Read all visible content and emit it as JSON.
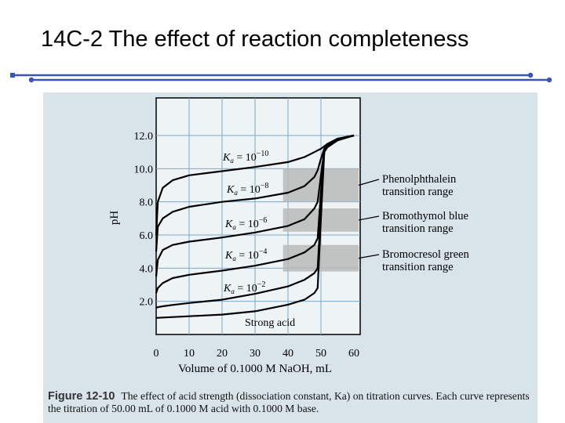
{
  "slide": {
    "title": "14C-2 The effect of reaction completeness"
  },
  "colors": {
    "rule": "#3b54b8",
    "panel": "#d9e3ea",
    "plot_bg": "#eef3f6",
    "shade": "#b8b8b8",
    "curve": "#000000"
  },
  "chart_data": {
    "type": "line",
    "xlabel": "Volume of 0.1000 M NaOH, mL",
    "ylabel": "pH",
    "xlim": [
      0,
      60
    ],
    "ylim": [
      0,
      13
    ],
    "grid": true,
    "x_ticks": [
      "0",
      "10",
      "20",
      "30",
      "40",
      "50",
      "60"
    ],
    "y_ticks": [
      "2.0",
      "4.0",
      "6.0",
      "8.0",
      "10.0",
      "12.0"
    ],
    "series": [
      {
        "name": "Ka = 10^-10",
        "x": [
          0,
          0.5,
          2,
          5,
          10,
          20,
          30,
          40,
          45,
          48,
          49,
          50,
          51,
          52,
          55,
          60
        ],
        "y": [
          6.0,
          8.0,
          8.85,
          9.3,
          9.6,
          9.85,
          10.1,
          10.4,
          10.7,
          11.0,
          11.1,
          11.2,
          11.35,
          11.5,
          11.8,
          12.0
        ]
      },
      {
        "name": "Ka = 10^-8",
        "x": [
          0,
          0.5,
          2,
          5,
          10,
          20,
          30,
          40,
          45,
          48,
          49,
          50,
          51,
          52,
          55,
          60
        ],
        "y": [
          5.0,
          6.5,
          7.0,
          7.4,
          7.7,
          8.0,
          8.2,
          8.55,
          8.95,
          9.5,
          9.9,
          10.6,
          11.2,
          11.5,
          11.8,
          12.0
        ]
      },
      {
        "name": "Ka = 10^-6",
        "x": [
          0,
          0.5,
          2,
          5,
          10,
          20,
          30,
          40,
          45,
          48,
          49,
          50,
          51,
          52,
          55,
          60
        ],
        "y": [
          3.5,
          4.5,
          5.1,
          5.4,
          5.6,
          5.85,
          6.15,
          6.55,
          6.95,
          7.6,
          8.0,
          9.6,
          11.1,
          11.45,
          11.8,
          12.0
        ]
      },
      {
        "name": "Ka = 10^-4",
        "x": [
          0,
          0.5,
          2,
          5,
          10,
          20,
          30,
          40,
          45,
          48,
          49,
          50,
          51,
          52,
          55,
          60
        ],
        "y": [
          2.5,
          2.8,
          3.1,
          3.4,
          3.6,
          3.85,
          4.15,
          4.55,
          4.95,
          5.4,
          5.8,
          8.6,
          11.0,
          11.45,
          11.8,
          12.0
        ]
      },
      {
        "name": "Ka = 10^-2",
        "x": [
          0,
          0.5,
          2,
          5,
          10,
          20,
          30,
          40,
          45,
          48,
          49,
          50,
          51,
          52,
          55,
          60
        ],
        "y": [
          1.6,
          1.65,
          1.7,
          1.78,
          1.9,
          2.1,
          2.45,
          2.9,
          3.3,
          3.7,
          4.0,
          7.6,
          11.0,
          11.4,
          11.8,
          12.0
        ]
      },
      {
        "name": "Strong acid",
        "x": [
          0,
          10,
          20,
          30,
          40,
          45,
          48,
          49,
          50,
          51,
          52,
          55,
          60
        ],
        "y": [
          1.0,
          1.1,
          1.2,
          1.4,
          1.8,
          2.1,
          2.5,
          2.8,
          7.0,
          11.0,
          11.3,
          11.7,
          12.0
        ]
      }
    ],
    "curve_labels": [
      {
        "base": "K",
        "sub": "a",
        "mid": " = 10",
        "sup": "−10"
      },
      {
        "base": "K",
        "sub": "a",
        "mid": " = 10",
        "sup": "−8"
      },
      {
        "base": "K",
        "sub": "a",
        "mid": " = 10",
        "sup": "−6"
      },
      {
        "base": "K",
        "sub": "a",
        "mid": " = 10",
        "sup": "−4"
      },
      {
        "base": "K",
        "sub": "a",
        "mid": " = 10",
        "sup": "−2"
      }
    ],
    "strong_acid_label": "Strong acid",
    "transition_ranges": [
      {
        "name": "Phenolphthalein",
        "sub": "transition range",
        "ph_min": 8.0,
        "ph_max": 10.0
      },
      {
        "name": "Bromothymol blue",
        "sub": "transition range",
        "ph_min": 6.2,
        "ph_max": 7.6
      },
      {
        "name": "Bromocresol green",
        "sub": "transition range",
        "ph_min": 3.8,
        "ph_max": 5.4
      }
    ]
  },
  "caption": {
    "label": "Figure 12-10",
    "text": "The effect of acid strength (dissociation constant, Ka) on titration curves. Each curve represents the titration of 50.00 mL of 0.1000 M acid with 0.1000 M base."
  }
}
